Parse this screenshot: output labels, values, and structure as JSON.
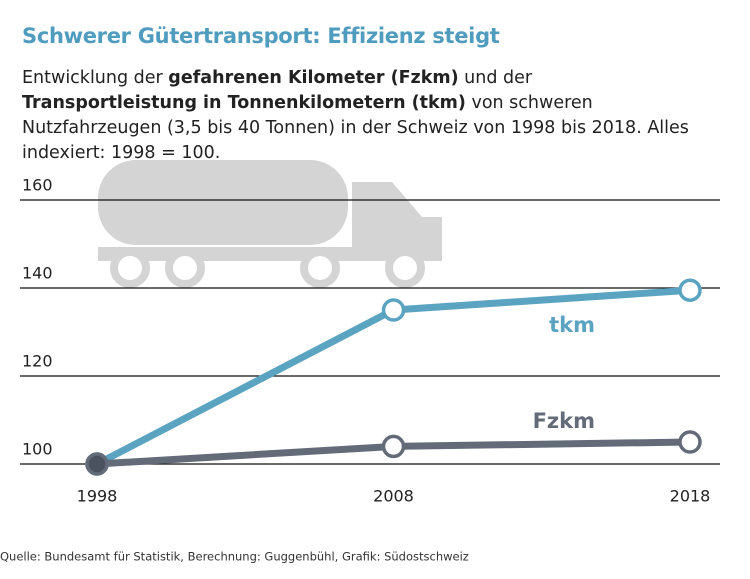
{
  "chart_data": {
    "type": "line",
    "title": "Schwerer Gütertransport: Effizienz steigt",
    "subtitle": [
      "Entwicklung der ",
      "gefahrenen Kilometer (Fzkm)",
      " und der ",
      "Transportleistung in Tonnenkilometern (tkm)",
      " von schweren Nutzfahrzeugen (3,5 bis 40 Tonnen) in der Schweiz von 1998 bis 2018. Alles indexiert: 1998 = 100."
    ],
    "x": [
      1998,
      2008,
      2018
    ],
    "xlim": [
      1998,
      2018
    ],
    "xticks": [
      1998,
      2008,
      2018
    ],
    "ylim": [
      100,
      160
    ],
    "yticks": [
      100,
      120,
      140,
      160
    ],
    "grid": true,
    "series": [
      {
        "name": "tkm",
        "color": "#5aa3c1",
        "values": [
          100,
          135,
          139.5
        ]
      },
      {
        "name": "Fzkm",
        "color": "#646b78",
        "values": [
          100,
          104,
          105
        ]
      }
    ],
    "source": "Quelle: Bundesamt für Statistik, Berechnung: Guggenbühl, Grafik: Südostschweiz"
  }
}
